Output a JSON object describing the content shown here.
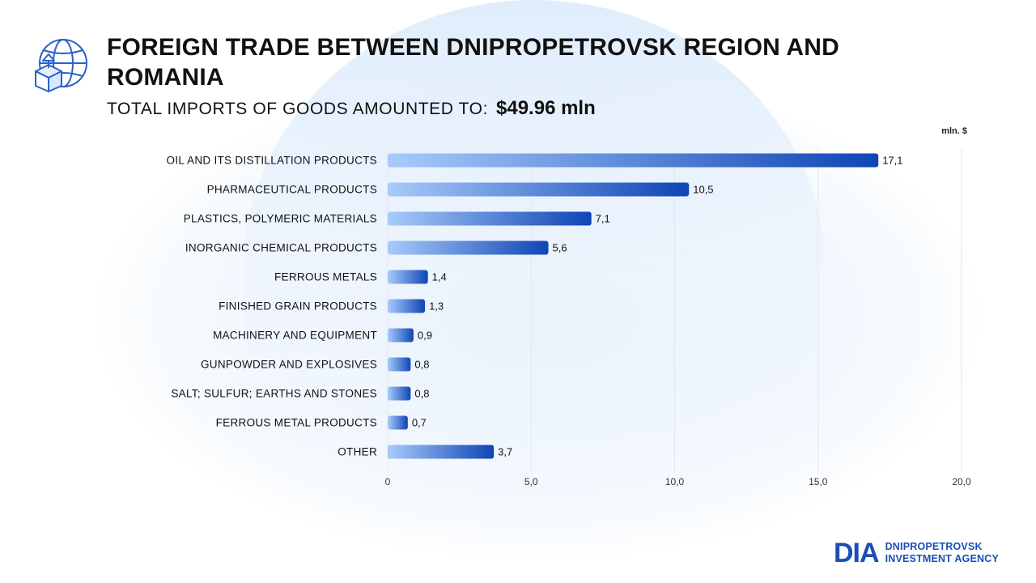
{
  "header": {
    "title": "FOREIGN TRADE BETWEEN DNIPROPETROVSK REGION AND ROMANIA",
    "subtitle_label": "TOTAL IMPORTS OF GOODS AMOUNTED TO:",
    "subtitle_value": "$49.96  mln",
    "icon": "globe-box-upload-icon"
  },
  "brand": {
    "mark": "DIA",
    "line1": "DNIPROPETROVSK",
    "line2": "INVESTMENT AGENCY",
    "color": "#1a4fb8"
  },
  "chart_data": {
    "type": "bar",
    "orientation": "horizontal",
    "unit_label": "mln. $",
    "categories": [
      "OIL AND ITS DISTILLATION PRODUCTS",
      "PHARMACEUTICAL PRODUCTS",
      "PLASTICS, POLYMERIC MATERIALS",
      "INORGANIC CHEMICAL PRODUCTS",
      "FERROUS METALS",
      "FINISHED GRAIN PRODUCTS",
      "MACHINERY AND EQUIPMENT",
      "GUNPOWDER AND EXPLOSIVES",
      "SALT; SULFUR; EARTHS AND STONES",
      "FERROUS METAL PRODUCTS",
      "OTHER"
    ],
    "values": [
      17.1,
      10.5,
      7.1,
      5.6,
      1.4,
      1.3,
      0.9,
      0.8,
      0.8,
      0.7,
      3.7
    ],
    "value_labels": [
      "17,1",
      "10,5",
      "7,1",
      "5,6",
      "1,4",
      "1,3",
      "0,9",
      "0,8",
      "0,8",
      "0,7",
      "3,7"
    ],
    "xlim": [
      0,
      20
    ],
    "x_ticks": [
      0,
      5,
      10,
      15,
      20
    ],
    "x_tick_labels": [
      "0",
      "5,0",
      "10,0",
      "15,0",
      "20,0"
    ],
    "grid": true,
    "bar_gradient": [
      "#a8cbfb",
      "#0f45b5"
    ]
  }
}
